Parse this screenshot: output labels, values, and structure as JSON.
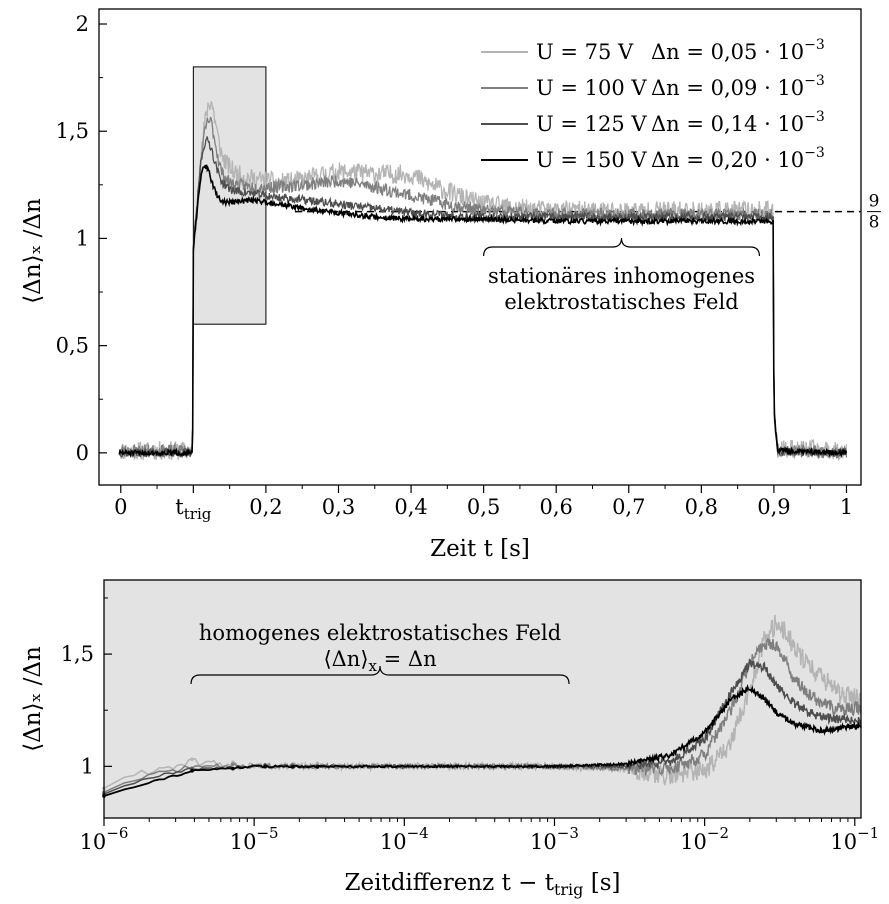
{
  "chart_data": [
    {
      "type": "line",
      "xlabel": "Zeit t [s]",
      "ylabel": "⟨Δn⟩ₓ /Δn",
      "xlim": [
        -0.03,
        1.02
      ],
      "ylim": [
        -0.15,
        2.07
      ],
      "x_ticks": [
        {
          "v": 0,
          "label": "0"
        },
        {
          "v": 0.1,
          "label": "t",
          "sub": "trig"
        },
        {
          "v": 0.2,
          "label": "0,2"
        },
        {
          "v": 0.3,
          "label": "0,3"
        },
        {
          "v": 0.4,
          "label": "0,4"
        },
        {
          "v": 0.5,
          "label": "0,5"
        },
        {
          "v": 0.6,
          "label": "0,6"
        },
        {
          "v": 0.7,
          "label": "0,7"
        },
        {
          "v": 0.8,
          "label": "0,8"
        },
        {
          "v": 0.9,
          "label": "0,9"
        },
        {
          "v": 1,
          "label": "1"
        }
      ],
      "y_ticks": [
        {
          "v": 0,
          "label": "0"
        },
        {
          "v": 0.5,
          "label": "0,5"
        },
        {
          "v": 1,
          "label": "1"
        },
        {
          "v": 1.5,
          "label": "1,5"
        },
        {
          "v": 2,
          "label": "2"
        }
      ],
      "grid": false,
      "legend_position": "top-right",
      "series": [
        {
          "name": "U =  75 V, Δn = 0,05 · 10⁻³",
          "legend": {
            "u": "U =  75 V",
            "dn": "Δn = 0,05 · 10",
            "exp": "−3"
          },
          "color": "#b4b4b4",
          "noise": 0.045,
          "seed": 11,
          "x": [
            0,
            0.099,
            0.1,
            0.105,
            0.11,
            0.115,
            0.12,
            0.125,
            0.13,
            0.135,
            0.14,
            0.15,
            0.16,
            0.18,
            0.2,
            0.22,
            0.25,
            0.28,
            0.3,
            0.32,
            0.35,
            0.38,
            0.4,
            0.42,
            0.45,
            0.48,
            0.5,
            0.55,
            0.6,
            0.7,
            0.8,
            0.899,
            0.9,
            0.905,
            1.0
          ],
          "y": [
            0.01,
            0.01,
            0.95,
            1.15,
            1.35,
            1.52,
            1.62,
            1.64,
            1.55,
            1.45,
            1.38,
            1.33,
            1.3,
            1.28,
            1.27,
            1.26,
            1.27,
            1.3,
            1.31,
            1.31,
            1.3,
            1.3,
            1.3,
            1.26,
            1.22,
            1.18,
            1.16,
            1.14,
            1.13,
            1.13,
            1.13,
            1.13,
            0.2,
            0.02,
            0.01
          ]
        },
        {
          "name": "U = 100 V, Δn = 0,09 · 10⁻³",
          "legend": {
            "u": "U = 100 V",
            "dn": "Δn = 0,09 · 10",
            "exp": "−3"
          },
          "color": "#7f7f7f",
          "noise": 0.03,
          "seed": 23,
          "x": [
            0,
            0.099,
            0.1,
            0.105,
            0.11,
            0.115,
            0.12,
            0.125,
            0.13,
            0.135,
            0.14,
            0.15,
            0.16,
            0.18,
            0.2,
            0.22,
            0.25,
            0.28,
            0.3,
            0.32,
            0.35,
            0.4,
            0.45,
            0.5,
            0.55,
            0.6,
            0.7,
            0.8,
            0.899,
            0.9,
            0.905,
            1.0
          ],
          "y": [
            0.01,
            0.01,
            0.95,
            1.15,
            1.35,
            1.48,
            1.55,
            1.54,
            1.45,
            1.36,
            1.3,
            1.26,
            1.25,
            1.24,
            1.24,
            1.24,
            1.25,
            1.26,
            1.27,
            1.26,
            1.24,
            1.2,
            1.16,
            1.13,
            1.12,
            1.11,
            1.11,
            1.11,
            1.11,
            0.2,
            0.01,
            0.0
          ]
        },
        {
          "name": "U = 125 V, Δn = 0,14 · 10⁻³",
          "legend": {
            "u": "U = 125 V",
            "dn": "Δn = 0,14 · 10",
            "exp": "−3"
          },
          "color": "#4e4e4e",
          "noise": 0.02,
          "seed": 37,
          "x": [
            0,
            0.099,
            0.1,
            0.105,
            0.11,
            0.115,
            0.12,
            0.125,
            0.13,
            0.135,
            0.14,
            0.15,
            0.16,
            0.18,
            0.2,
            0.22,
            0.25,
            0.3,
            0.35,
            0.4,
            0.45,
            0.5,
            0.6,
            0.7,
            0.8,
            0.899,
            0.9,
            0.905,
            1.0
          ],
          "y": [
            0.0,
            0.0,
            0.95,
            1.15,
            1.35,
            1.44,
            1.46,
            1.42,
            1.35,
            1.3,
            1.26,
            1.23,
            1.22,
            1.21,
            1.2,
            1.19,
            1.18,
            1.16,
            1.14,
            1.12,
            1.11,
            1.1,
            1.1,
            1.1,
            1.1,
            1.1,
            0.2,
            0.01,
            0.0
          ]
        },
        {
          "name": "U = 150 V, Δn = 0,20 · 10⁻³",
          "legend": {
            "u": "U = 150 V",
            "dn": "Δn = 0,20 · 10",
            "exp": "−3"
          },
          "color": "#000000",
          "noise": 0.012,
          "seed": 51,
          "x": [
            0,
            0.099,
            0.1,
            0.105,
            0.11,
            0.115,
            0.12,
            0.125,
            0.13,
            0.135,
            0.14,
            0.15,
            0.16,
            0.18,
            0.2,
            0.22,
            0.25,
            0.3,
            0.35,
            0.4,
            0.5,
            0.6,
            0.7,
            0.8,
            0.899,
            0.9,
            0.905,
            1.0
          ],
          "y": [
            0.0,
            0.0,
            0.95,
            1.12,
            1.28,
            1.34,
            1.33,
            1.27,
            1.22,
            1.19,
            1.17,
            1.17,
            1.17,
            1.18,
            1.17,
            1.16,
            1.14,
            1.12,
            1.1,
            1.09,
            1.09,
            1.08,
            1.08,
            1.08,
            1.08,
            0.2,
            0.01,
            0.0
          ]
        }
      ],
      "highlight_box": {
        "x": [
          0.1,
          0.2
        ],
        "y": [
          0.6,
          1.8
        ]
      },
      "reference_line": {
        "y": 1.125,
        "from_x": 0.24,
        "label_num": "9",
        "label_den": "8"
      },
      "annotation": {
        "from_x": 0.5,
        "to_x": 0.88,
        "y": 1.03,
        "line1": "stationäres inhomogenes",
        "line2": "elektrostatisches Feld"
      }
    },
    {
      "type": "line",
      "xlabel": "Zeitdifferenz t − t",
      "xlabel_sub": "trig",
      "xlabel_unit": " [s]",
      "ylabel": "⟨Δn⟩ₓ /Δn",
      "x_scale": "log",
      "xlim": [
        1e-06,
        0.11
      ],
      "ylim": [
        0.77,
        1.83
      ],
      "x_ticks": [
        {
          "v": 1e-06,
          "label": "10",
          "exp": "−6"
        },
        {
          "v": 1e-05,
          "label": "10",
          "exp": "−5"
        },
        {
          "v": 0.0001,
          "label": "10",
          "exp": "−4"
        },
        {
          "v": 0.001,
          "label": "10",
          "exp": "−3"
        },
        {
          "v": 0.01,
          "label": "10",
          "exp": "−2"
        },
        {
          "v": 0.1,
          "label": "10",
          "exp": "−1"
        }
      ],
      "y_ticks": [
        {
          "v": 1,
          "label": "1"
        },
        {
          "v": 1.5,
          "label": "1,5"
        }
      ],
      "background": "#e3e3e3",
      "grid": false,
      "series": [
        {
          "name": "U =  75 V",
          "color": "#b4b4b4",
          "noise": 0.045,
          "seed": 61,
          "x": [
            1e-06,
            2e-06,
            4e-06,
            1e-05,
            0.0001,
            0.001,
            0.003,
            0.006,
            0.01,
            0.015,
            0.02,
            0.025,
            0.03,
            0.035,
            0.04,
            0.05,
            0.06,
            0.08,
            0.11
          ],
          "y": [
            0.91,
            0.98,
            1.02,
            1.0,
            1.0,
            1.0,
            0.99,
            0.96,
            0.98,
            1.1,
            1.35,
            1.56,
            1.64,
            1.6,
            1.52,
            1.45,
            1.4,
            1.32,
            1.3
          ]
        },
        {
          "name": "U = 100 V",
          "color": "#7f7f7f",
          "noise": 0.03,
          "seed": 71,
          "x": [
            1e-06,
            2e-06,
            4e-06,
            1e-05,
            0.0001,
            0.001,
            0.003,
            0.006,
            0.01,
            0.015,
            0.02,
            0.025,
            0.03,
            0.035,
            0.04,
            0.05,
            0.06,
            0.08,
            0.11
          ],
          "y": [
            0.89,
            0.96,
            1.0,
            1.0,
            1.0,
            1.0,
            0.99,
            0.99,
            1.05,
            1.25,
            1.46,
            1.55,
            1.54,
            1.46,
            1.38,
            1.32,
            1.28,
            1.25,
            1.26
          ]
        },
        {
          "name": "U = 125 V",
          "color": "#4e4e4e",
          "noise": 0.02,
          "seed": 81,
          "x": [
            1e-06,
            2e-06,
            4e-06,
            1e-05,
            0.0001,
            0.001,
            0.003,
            0.006,
            0.01,
            0.015,
            0.02,
            0.025,
            0.03,
            0.04,
            0.05,
            0.06,
            0.08,
            0.11
          ],
          "y": [
            0.88,
            0.95,
            0.99,
            1.0,
            1.0,
            1.0,
            1.0,
            1.02,
            1.12,
            1.33,
            1.46,
            1.44,
            1.36,
            1.28,
            1.24,
            1.22,
            1.21,
            1.2
          ]
        },
        {
          "name": "U = 150 V",
          "color": "#000000",
          "noise": 0.012,
          "seed": 91,
          "x": [
            1e-06,
            2e-06,
            4e-06,
            1e-05,
            0.0001,
            0.001,
            0.003,
            0.006,
            0.01,
            0.015,
            0.02,
            0.025,
            0.03,
            0.04,
            0.05,
            0.06,
            0.08,
            0.11
          ],
          "y": [
            0.87,
            0.93,
            0.98,
            1.0,
            1.0,
            1.0,
            1.01,
            1.05,
            1.15,
            1.3,
            1.35,
            1.3,
            1.24,
            1.19,
            1.17,
            1.16,
            1.17,
            1.18
          ]
        }
      ],
      "annotation": {
        "from_x": 3.8e-06,
        "to_x": 0.00125,
        "y": 1.5,
        "line1": "homogenes elektrostatisches Feld",
        "line2_left": "⟨Δn⟩",
        "line2_sub": "x",
        "line2_right": " = Δn"
      }
    }
  ]
}
